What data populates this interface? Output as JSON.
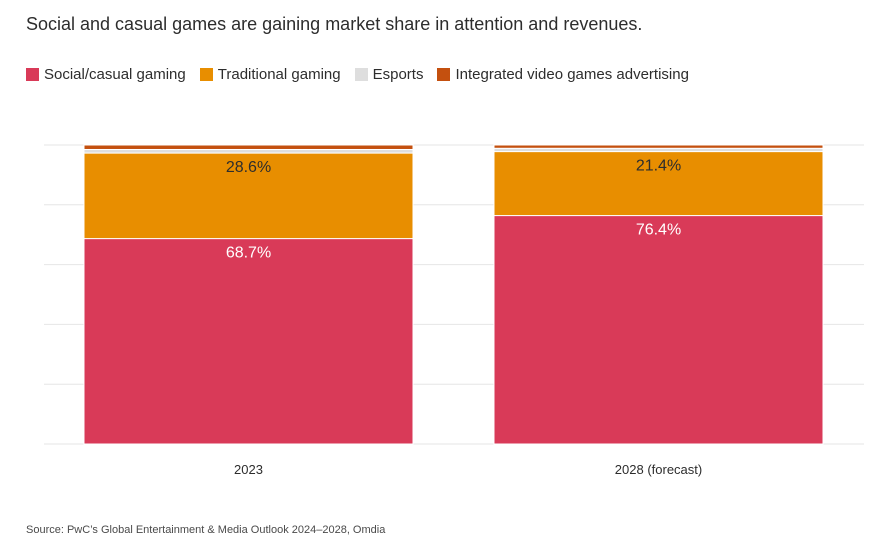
{
  "header": {
    "title": "Social and casual games are gaining market share in attention and revenues."
  },
  "footer": {
    "source": "Source: PwC’s Global Entertainment & Media Outlook 2024–2028, Omdia"
  },
  "chart_data": {
    "type": "bar",
    "stacked": true,
    "normalized_percent": true,
    "categories": [
      "2023",
      "2028 (forecast)"
    ],
    "series": [
      {
        "name": "Social/casual gaming",
        "color": "#d93a58",
        "values": [
          68.7,
          76.4
        ],
        "labels": [
          "68.7%",
          "76.4%"
        ]
      },
      {
        "name": "Traditional gaming",
        "color": "#e88e00",
        "values": [
          28.6,
          21.4
        ],
        "labels": [
          "28.6%",
          "21.4%"
        ]
      },
      {
        "name": "Esports",
        "color": "#dedede",
        "values": [
          1.2,
          1.1
        ],
        "labels": [
          "",
          ""
        ]
      },
      {
        "name": "Integrated video games advertising",
        "color": "#c4500f",
        "values": [
          1.5,
          1.1
        ],
        "labels": [
          "",
          ""
        ]
      }
    ],
    "ylim": [
      0,
      100
    ],
    "grid": true,
    "legend_position": "top-left",
    "xlabel": "",
    "ylabel": ""
  }
}
